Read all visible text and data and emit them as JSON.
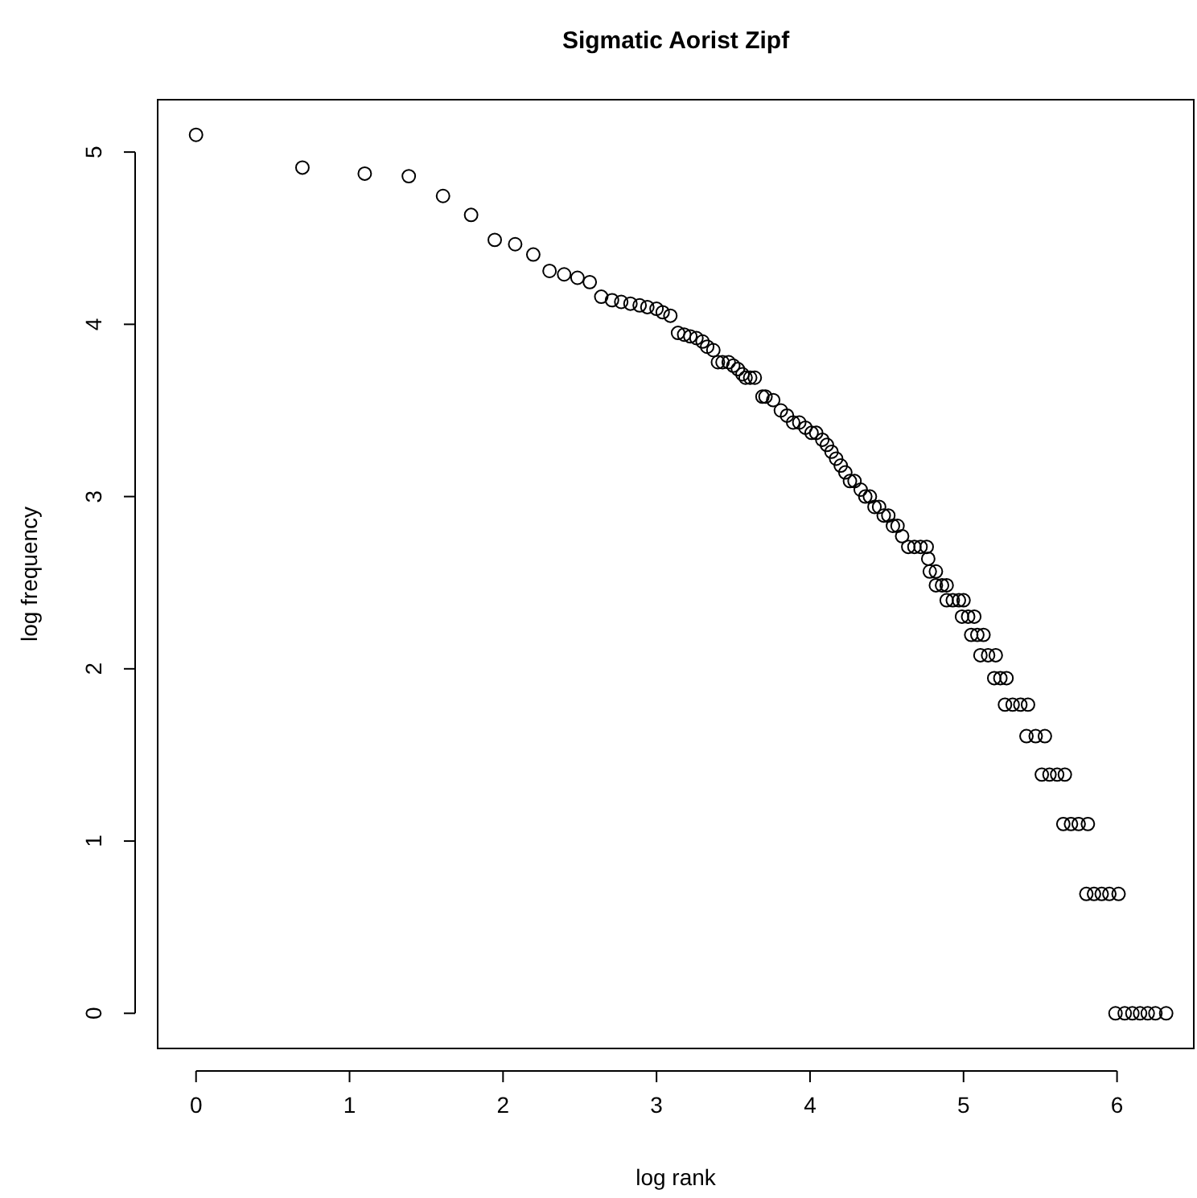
{
  "chart_data": {
    "type": "scatter",
    "title": "Sigmatic Aorist Zipf",
    "xlabel": "log rank",
    "ylabel": "log frequency",
    "marker": "circle",
    "grid": false,
    "xlim": [
      -0.25,
      6.5
    ],
    "ylim": [
      -0.204,
      5.304
    ],
    "xticks": [
      0,
      1,
      2,
      3,
      4,
      5,
      6
    ],
    "yticks": [
      0,
      1,
      2,
      3,
      4,
      5
    ],
    "series": [
      {
        "color": "#000000",
        "x": [
          0,
          0.693,
          1.099,
          1.386,
          1.609,
          1.792,
          1.946,
          2.079,
          2.197,
          2.303,
          2.398,
          2.485,
          2.565,
          2.64,
          2.71,
          2.77,
          2.83,
          2.89,
          2.94,
          3.0,
          3.04,
          3.09,
          3.14,
          3.18,
          3.22,
          3.26,
          3.3,
          3.33,
          3.37,
          3.4,
          3.43,
          3.47,
          3.5,
          3.53,
          3.56,
          3.58,
          3.61,
          3.64,
          3.69,
          3.71,
          3.76,
          3.81,
          3.85,
          3.89,
          3.93,
          3.97,
          4.01,
          4.04,
          4.08,
          4.11,
          4.14,
          4.17,
          4.2,
          4.23,
          4.26,
          4.29,
          4.33,
          4.36,
          4.39,
          4.42,
          4.45,
          4.48,
          4.51,
          4.54,
          4.57,
          4.6,
          4.64,
          4.68,
          4.72,
          4.76,
          4.77,
          4.78,
          4.82,
          4.82,
          4.86,
          4.89,
          4.89,
          4.93,
          4.97,
          5.0,
          4.99,
          5.03,
          5.07,
          5.05,
          5.09,
          5.13,
          5.11,
          5.16,
          5.21,
          5.2,
          5.24,
          5.28,
          5.27,
          5.32,
          5.37,
          5.42,
          5.41,
          5.47,
          5.53,
          5.51,
          5.56,
          5.61,
          5.66,
          5.65,
          5.7,
          5.75,
          5.81,
          5.8,
          5.85,
          5.9,
          5.95,
          6.01,
          5.99,
          6.05,
          6.1,
          6.15,
          6.2,
          6.25,
          6.32
        ],
        "values": [
          5.1,
          4.91,
          4.875,
          4.86,
          4.745,
          4.635,
          4.49,
          4.465,
          4.405,
          4.31,
          4.29,
          4.27,
          4.245,
          4.16,
          4.14,
          4.13,
          4.12,
          4.11,
          4.1,
          4.09,
          4.07,
          4.05,
          3.95,
          3.94,
          3.93,
          3.92,
          3.9,
          3.87,
          3.85,
          3.78,
          3.78,
          3.78,
          3.76,
          3.74,
          3.71,
          3.69,
          3.69,
          3.69,
          3.58,
          3.58,
          3.56,
          3.5,
          3.47,
          3.43,
          3.43,
          3.4,
          3.37,
          3.37,
          3.33,
          3.3,
          3.26,
          3.22,
          3.18,
          3.14,
          3.09,
          3.09,
          3.04,
          3.0,
          3.0,
          2.94,
          2.94,
          2.89,
          2.89,
          2.83,
          2.83,
          2.77,
          2.708,
          2.708,
          2.708,
          2.708,
          2.639,
          2.565,
          2.565,
          2.485,
          2.485,
          2.485,
          2.398,
          2.398,
          2.398,
          2.398,
          2.303,
          2.303,
          2.303,
          2.197,
          2.197,
          2.197,
          2.079,
          2.079,
          2.079,
          1.946,
          1.946,
          1.946,
          1.792,
          1.792,
          1.792,
          1.792,
          1.609,
          1.609,
          1.609,
          1.386,
          1.386,
          1.386,
          1.386,
          1.099,
          1.099,
          1.099,
          1.099,
          0.693,
          0.693,
          0.693,
          0.693,
          0.693,
          0,
          0,
          0,
          0,
          0,
          0,
          0
        ]
      }
    ]
  }
}
